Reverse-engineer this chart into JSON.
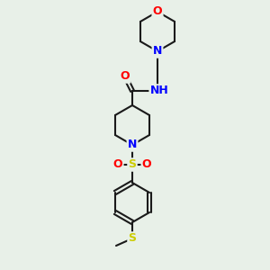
{
  "bg_color": "#e8f0e8",
  "bond_color": "#1a1a1a",
  "bond_width": 1.5,
  "atom_colors": {
    "O": "#ff0000",
    "N": "#0000ff",
    "S": "#cccc00",
    "S_sulfonyl": "#cccc00",
    "C": "#1a1a1a",
    "H": "#408080"
  },
  "font_size_atom": 9,
  "font_size_small": 7
}
